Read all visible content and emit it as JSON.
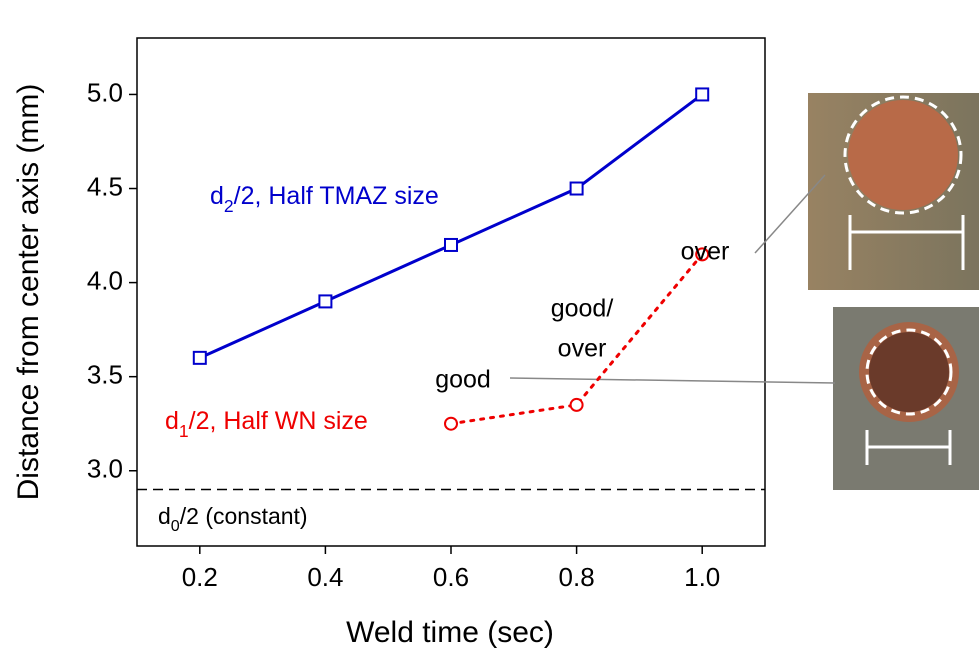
{
  "chart_data": {
    "type": "line",
    "x_label": "Weld time (sec)",
    "y_label": "Distance from center axis (mm)",
    "xlim": [
      0.1,
      1.1
    ],
    "xticks": [
      0.2,
      0.4,
      0.6,
      0.8,
      {
        "value": 1.0,
        "label": "1.0"
      }
    ],
    "ylim": [
      2.6,
      5.3
    ],
    "yticks": [
      {
        "value": 3.0,
        "label": "3.0"
      },
      3.5,
      {
        "value": 4.0,
        "label": "4.0"
      },
      4.5,
      {
        "value": 5.0,
        "label": "5.0"
      }
    ],
    "series": [
      {
        "name": "d2/2, Half TMAZ size",
        "color": "#0000cc",
        "marker": "square",
        "linestyle": "solid",
        "x": [
          0.2,
          0.4,
          0.6,
          0.8,
          1.0
        ],
        "values": [
          3.6,
          3.9,
          4.2,
          4.5,
          5.0
        ]
      },
      {
        "name": "d1/2, Half WN size",
        "color": "#ee0000",
        "marker": "circle",
        "linestyle": "dotted",
        "x": [
          0.6,
          0.8,
          1.0
        ],
        "values": [
          3.25,
          3.35,
          4.15
        ]
      }
    ],
    "reference_line": {
      "label": "d0/2 (constant)",
      "value": 2.9
    },
    "annotations": [
      "over",
      "good/",
      "over",
      "good"
    ]
  }
}
